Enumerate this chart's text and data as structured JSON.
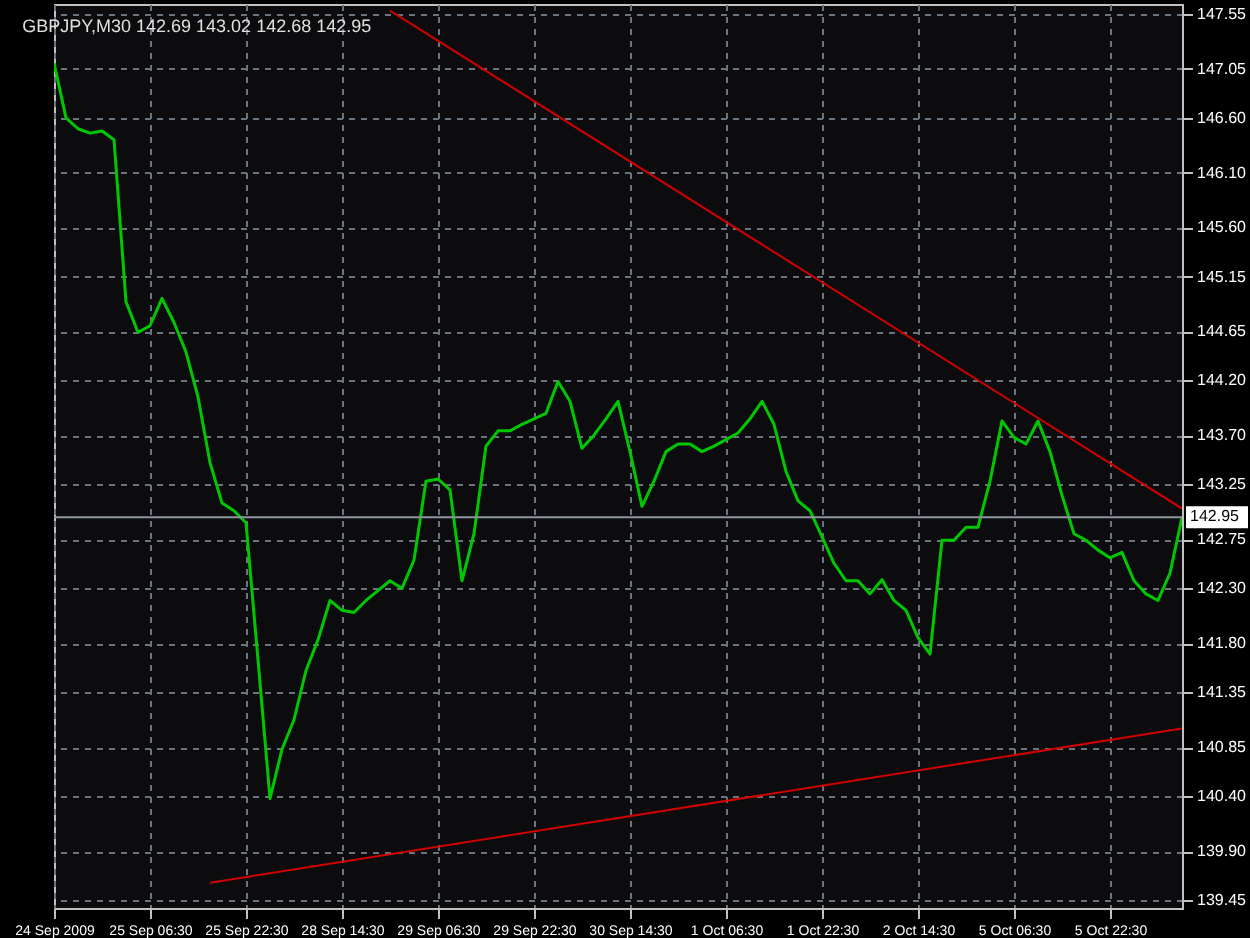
{
  "chart_data": {
    "type": "line",
    "title": "GBPJPY,M30 142.69 143.02 142.68 142.95",
    "categories": [
      "24 Sep 2009",
      null,
      null,
      null,
      null,
      null,
      null,
      null,
      "25 Sep 06:30",
      null,
      null,
      null,
      null,
      null,
      null,
      null,
      "25 Sep 22:30",
      null,
      null,
      null,
      null,
      null,
      null,
      null,
      "28 Sep 14:30",
      null,
      null,
      null,
      null,
      null,
      null,
      null,
      "29 Sep 06:30",
      null,
      null,
      null,
      null,
      null,
      null,
      null,
      "29 Sep 22:30",
      null,
      null,
      null,
      null,
      null,
      null,
      null,
      "30 Sep 14:30",
      null,
      null,
      null,
      null,
      null,
      null,
      null,
      "1 Oct 06:30",
      null,
      null,
      null,
      null,
      null,
      null,
      null,
      "1 Oct 22:30",
      null,
      null,
      null,
      null,
      null,
      null,
      null,
      "2 Oct 14:30",
      null,
      null,
      null,
      null,
      null,
      null,
      null,
      "5 Oct 06:30",
      null,
      null,
      null,
      null,
      null,
      null,
      null,
      "5 Oct 22:30",
      null,
      null,
      null,
      null,
      null,
      null
    ],
    "series": [
      {
        "color": "#00c800",
        "values": [
          147.1,
          146.6,
          146.5,
          146.46,
          146.48,
          146.4,
          144.92,
          144.64,
          144.7,
          144.95,
          144.73,
          144.46,
          144.05,
          143.45,
          143.08,
          143.01,
          142.9,
          141.65,
          140.38,
          140.83,
          141.1,
          141.55,
          141.83,
          142.19,
          142.1,
          142.08,
          142.19,
          142.28,
          142.37,
          142.3,
          142.56,
          143.28,
          143.3,
          143.2,
          142.37,
          142.8,
          143.6,
          143.74,
          143.74,
          143.8,
          143.85,
          143.9,
          144.19,
          144.01,
          143.58,
          143.7,
          143.85,
          144.01,
          143.55,
          143.05,
          143.28,
          143.55,
          143.62,
          143.62,
          143.55,
          143.6,
          143.66,
          143.72,
          143.85,
          144.01,
          143.8,
          143.37,
          143.1,
          143.01,
          142.77,
          142.53,
          142.37,
          142.37,
          142.25,
          142.38,
          142.19,
          142.1,
          141.85,
          141.7,
          142.74,
          142.74,
          142.86,
          142.86,
          143.28,
          143.83,
          143.68,
          143.62,
          143.83,
          143.55,
          143.15,
          142.8,
          142.74,
          142.65,
          142.58,
          142.63,
          142.37,
          142.25,
          142.19,
          142.44,
          142.95
        ]
      },
      {
        "type": "line",
        "color": "#d00000",
        "values": [
          null,
          null,
          null,
          null,
          null,
          null,
          null,
          null,
          null,
          null,
          null,
          null,
          null,
          null,
          null,
          null,
          null,
          null,
          null,
          null,
          null,
          null,
          null,
          null,
          null,
          null,
          null,
          null,
          147.58,
          null,
          null,
          null,
          null,
          null,
          null,
          null,
          null,
          null,
          null,
          null,
          null,
          null,
          null,
          null,
          null,
          null,
          null,
          null,
          null,
          null,
          null,
          null,
          null,
          null,
          null,
          null,
          null,
          null,
          null,
          null,
          null,
          null,
          null,
          null,
          null,
          null,
          null,
          null,
          null,
          null,
          null,
          null,
          null,
          null,
          null,
          null,
          null,
          null,
          null,
          null,
          null,
          null,
          null,
          null,
          null,
          null,
          null,
          null,
          null,
          null,
          null,
          null,
          null,
          null,
          143.03
        ]
      },
      {
        "type": "line",
        "color": "#d00000",
        "values": [
          null,
          null,
          null,
          null,
          null,
          null,
          null,
          null,
          null,
          null,
          null,
          null,
          null,
          139.61,
          null,
          null,
          null,
          null,
          null,
          null,
          null,
          null,
          null,
          null,
          null,
          null,
          null,
          null,
          null,
          null,
          null,
          null,
          null,
          null,
          null,
          null,
          null,
          null,
          null,
          null,
          null,
          null,
          null,
          null,
          null,
          null,
          null,
          null,
          null,
          null,
          null,
          null,
          null,
          null,
          null,
          null,
          null,
          null,
          null,
          null,
          null,
          null,
          null,
          null,
          null,
          null,
          null,
          null,
          null,
          null,
          null,
          null,
          null,
          null,
          null,
          null,
          null,
          null,
          null,
          null,
          null,
          null,
          null,
          null,
          null,
          null,
          null,
          null,
          null,
          null,
          null,
          null,
          null,
          null,
          141.02
        ]
      }
    ],
    "ylim": [
      139.38,
      147.64
    ],
    "yticks": [
      139.45,
      {
        "value": 139.9,
        "label": "139.90"
      },
      {
        "value": 140.4,
        "label": "140.40"
      },
      140.85,
      141.35,
      {
        "value": 141.8,
        "label": "141.80"
      },
      {
        "value": 142.3,
        "label": "142.30"
      },
      142.75,
      143.25,
      {
        "value": 143.7,
        "label": "143.70"
      },
      {
        "value": 144.2,
        "label": "144.20"
      },
      144.65,
      145.15,
      {
        "value": 145.6,
        "label": "145.60"
      },
      {
        "value": 146.1,
        "label": "146.10"
      },
      {
        "value": 146.6,
        "label": "146.60"
      },
      147.05,
      147.55
    ],
    "ref_lines": [
      {
        "axis": "y",
        "value": 142.95,
        "label": "142.95",
        "color": "#8c96a0"
      }
    ],
    "grid": true,
    "marker": "none",
    "line_style": "solid"
  }
}
